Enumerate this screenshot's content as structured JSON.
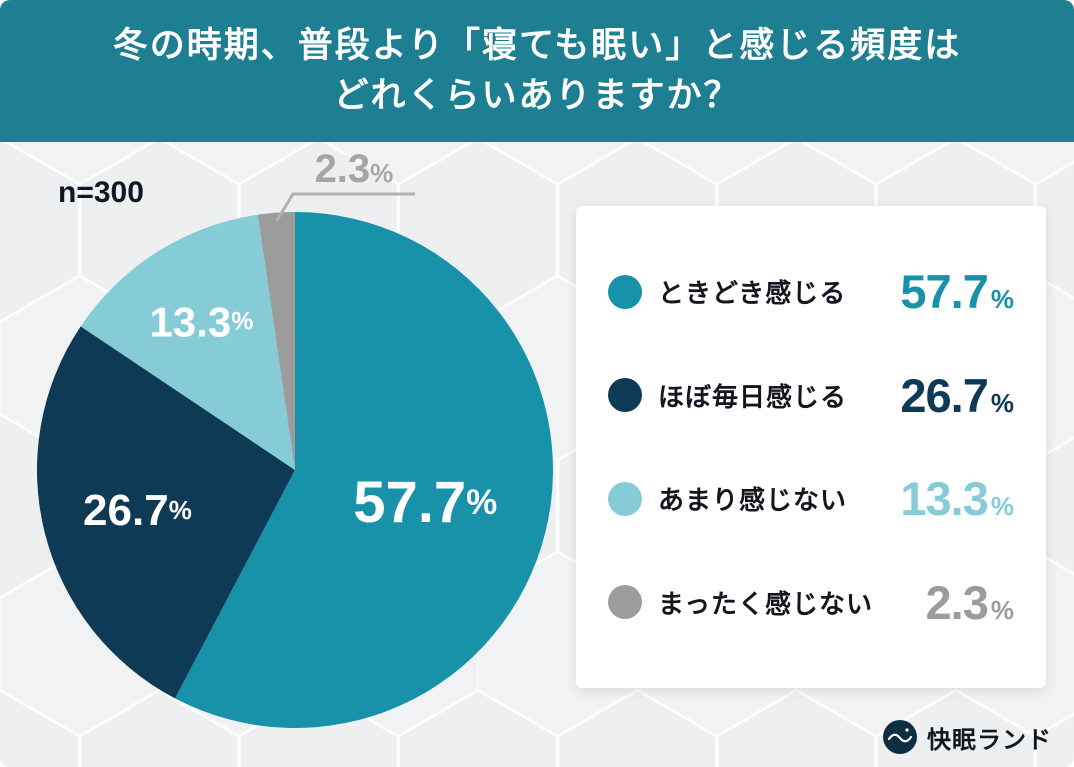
{
  "header": {
    "title_line1": "冬の時期、普段より「寝ても眠い」と感じる頻度は",
    "title_line2": "どれくらいありますか？",
    "background_color": "#1e7e92"
  },
  "sample_label": "n=300",
  "percent_sign": "%",
  "chart_data": {
    "type": "pie",
    "title": "冬の時期、普段より「寝ても眠い」と感じる頻度はどれくらいありますか？",
    "sample_size": "n=300",
    "unit": "%",
    "start_angle": "top",
    "direction": "clockwise",
    "legend_position": "right",
    "slices": [
      {
        "label": "ときどき感じる",
        "value": 57.7,
        "value_str": "57.7",
        "color": "#1792a9",
        "label_inside": true,
        "label_radius": 0.52,
        "label_size": 58
      },
      {
        "label": "ほぼ毎日感じる",
        "value": 26.7,
        "value_str": "26.7",
        "color": "#0e3a55",
        "label_inside": true,
        "label_radius": 0.63,
        "label_size": 44
      },
      {
        "label": "あまり感じない",
        "value": 13.3,
        "value_str": "13.3",
        "color": "#85ccd6",
        "label_inside": true,
        "label_radius": 0.68,
        "label_size": 42
      },
      {
        "label": "まったく感じない",
        "value": 2.3,
        "value_str": "2.3",
        "color": "#9c9c9c",
        "label_inside": false,
        "label_size": 40
      }
    ]
  },
  "logo": {
    "text": "快眠ランド"
  }
}
